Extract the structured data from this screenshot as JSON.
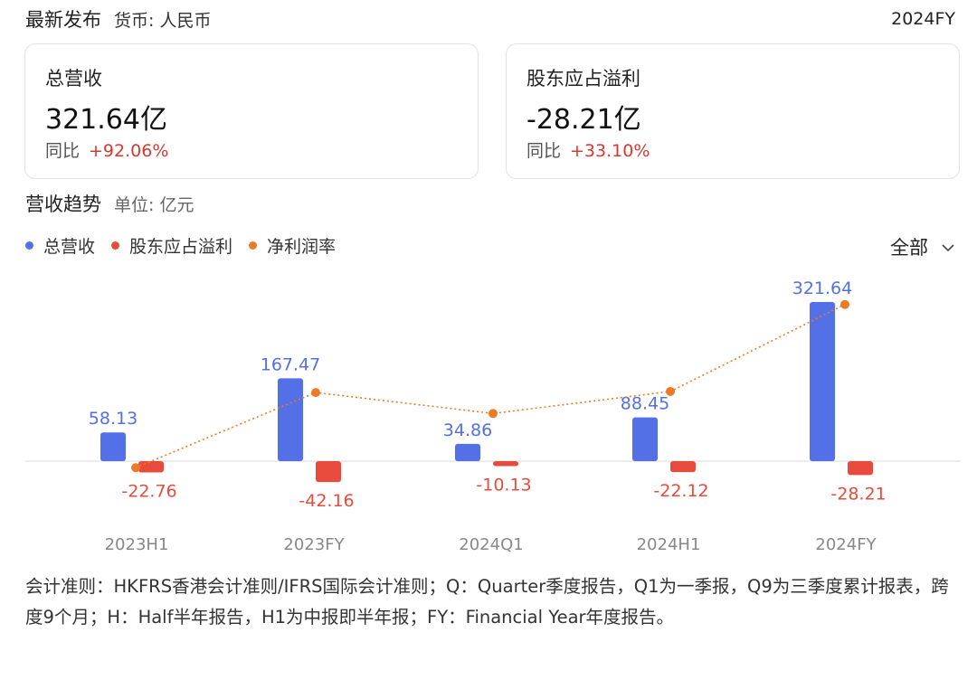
{
  "header": {
    "title": "最新发布",
    "currency": "货币: 人民币",
    "period": "2024FY"
  },
  "cards": [
    {
      "label": "总营收",
      "value": "321.64亿",
      "yoy_label": "同比",
      "yoy_value": "+92.06%"
    },
    {
      "label": "股东应占溢利",
      "value": "-28.21亿",
      "yoy_label": "同比",
      "yoy_value": "+33.10%"
    }
  ],
  "section": {
    "title": "营收趋势",
    "unit": "单位: 亿元"
  },
  "legend": [
    {
      "name": "总营收",
      "color": "#5470e6"
    },
    {
      "name": "股东应占溢利",
      "color": "#e84b3c"
    },
    {
      "name": "净利润率",
      "color": "#ef7a26"
    }
  ],
  "filter": {
    "label": "全部",
    "icon": "chevron-down-icon"
  },
  "chart_data": {
    "type": "bar",
    "categories": [
      "2023H1",
      "2023FY",
      "2024Q1",
      "2024H1",
      "2024FY"
    ],
    "series": [
      {
        "name": "总营收",
        "kind": "bar",
        "color": "#5470e6",
        "values": [
          58.13,
          167.47,
          34.86,
          88.45,
          321.64
        ],
        "labels": [
          "58.13",
          "167.47",
          "34.86",
          "88.45",
          "321.64"
        ]
      },
      {
        "name": "股东应占溢利",
        "kind": "bar",
        "color": "#e84b3c",
        "values": [
          -22.76,
          -42.16,
          -10.13,
          -22.12,
          -28.21
        ],
        "labels": [
          "-22.76",
          "-42.16",
          "-10.13",
          "-22.12",
          "-28.21"
        ]
      },
      {
        "name": "净利润率",
        "kind": "line",
        "style": "dotted",
        "color": "#ef7a26",
        "unit": "%",
        "values": [
          -39.2,
          -25.2,
          -29.1,
          -25.0,
          -8.8
        ]
      }
    ],
    "bar_axis_range": [
      -42.16,
      321.64
    ],
    "line_axis_range_pct": [
      -40,
      -8
    ],
    "zero_baseline": true,
    "legend_position": "top-left"
  },
  "note": "会计准则：HKFRS香港会计准则/IFRS国际会计准则；Q：Quarter季度报告，Q1为一季报，Q9为三季度累计报表，跨度9个月；H：Half半年报告，H1为中报即半年报；FY：Financial Year年度报告。"
}
